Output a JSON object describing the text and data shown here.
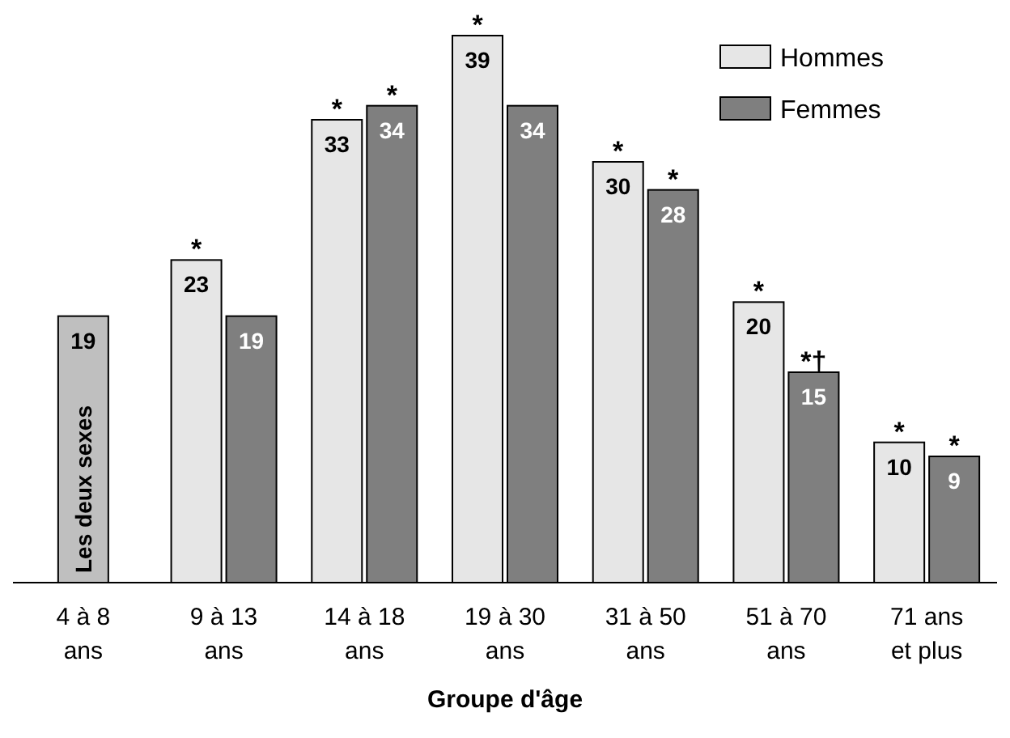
{
  "chart_data": {
    "type": "bar",
    "xlabel": "Groupe d'âge",
    "categories": [
      "4 à 8 ans",
      "9 à 13 ans",
      "14 à 18 ans",
      "19 à 30 ans",
      "31 à 50 ans",
      "51 à 70 ans",
      "71 ans et plus"
    ],
    "series": [
      {
        "name": "Les deux sexes",
        "color": "#bfbfbf",
        "values": [
          19,
          null,
          null,
          null,
          null,
          null,
          null
        ]
      },
      {
        "name": "Hommes",
        "color": "#e6e6e6",
        "values": [
          null,
          23,
          33,
          39,
          30,
          20,
          10
        ]
      },
      {
        "name": "Femmes",
        "color": "#7f7f7f",
        "values": [
          null,
          19,
          34,
          34,
          28,
          15,
          9
        ]
      }
    ],
    "data_labels": true,
    "legend": "top right",
    "annotations": [
      {
        "text": "*",
        "x": "9 à 13 ans",
        "y": 23
      },
      {
        "text": "*",
        "x": "14 à 18 ans",
        "y": 33
      },
      {
        "text": "*",
        "x": "14 à 18 ans",
        "y": 34
      },
      {
        "text": "*",
        "x": "19 à 30 ans",
        "y": 39
      },
      {
        "text": "*",
        "x": "31 à 50 ans",
        "y": 30
      },
      {
        "text": "*",
        "x": "31 à 50 ans",
        "y": 28
      },
      {
        "text": "*",
        "x": "51 à 70 ans",
        "y": 20
      },
      {
        "text": "*†",
        "x": "51 à 70 ans",
        "y": 15
      },
      {
        "text": "*",
        "x": "71 ans et plus",
        "y": 10
      },
      {
        "text": "*",
        "x": "71 ans et plus",
        "y": 9
      }
    ]
  }
}
